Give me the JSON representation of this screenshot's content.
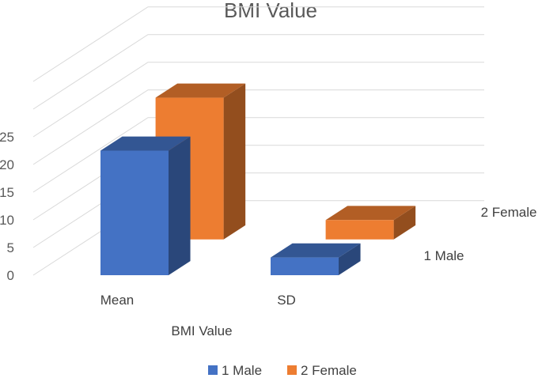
{
  "chart_data": {
    "type": "bar",
    "subtype": "3d-column",
    "title": "BMI Value",
    "xlabel": "BMI Value",
    "ylabel": "",
    "categories": [
      "Mean",
      "SD"
    ],
    "series": [
      {
        "name": "1 Male",
        "values": [
          22.5,
          3.2
        ],
        "color": "#4472C4"
      },
      {
        "name": "2 Female",
        "values": [
          25.6,
          3.5
        ],
        "color": "#ED7D31"
      }
    ],
    "yticks": [
      0,
      5,
      10,
      15,
      20,
      25
    ],
    "ylim": [
      0,
      35
    ],
    "grid": true,
    "legend": "bottom"
  }
}
